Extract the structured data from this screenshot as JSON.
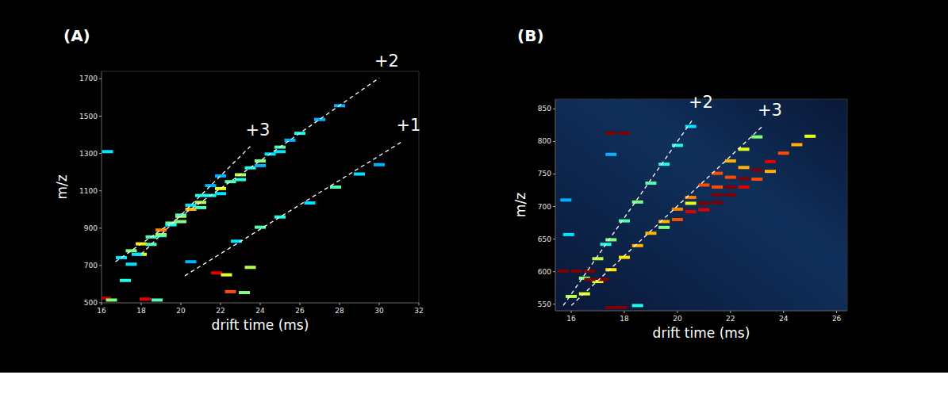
{
  "chart_data": [
    {
      "type": "scatter",
      "label": "(A)",
      "xlabel": "drift time (ms)",
      "ylabel": "m/z",
      "xlim": [
        16,
        32
      ],
      "xticks": [
        16,
        18,
        20,
        22,
        24,
        26,
        28,
        30,
        32
      ],
      "ylim": [
        500,
        1740
      ],
      "yticks": [
        500,
        700,
        900,
        1100,
        1300,
        1500,
        1700
      ],
      "grid": false,
      "marker": "dash",
      "intensity_lim": [
        0,
        1
      ],
      "points": {
        "x": [
          17,
          17.5,
          18,
          18.5,
          19,
          19.5,
          20,
          20.5,
          21,
          21.5,
          22,
          22.5,
          23,
          23.5,
          24,
          24.5,
          25,
          25.5,
          26,
          27,
          28,
          19,
          20,
          21,
          22,
          23,
          24,
          25,
          17.5,
          18,
          18.5,
          19,
          19.5,
          20,
          20.5,
          21,
          21.5,
          22,
          22.8,
          24,
          25,
          26.5,
          27.8,
          29,
          30,
          23.5,
          16.2,
          16.5,
          18.2,
          18.8,
          21.8,
          22.3,
          22.5,
          23.2,
          17.2,
          16.3,
          17.8,
          20.5
        ],
        "values": [
          742,
          779,
          816,
          853,
          890,
          927,
          964,
          1001,
          1038,
          1075,
          1112,
          1149,
          1186,
          1223,
          1260,
          1297,
          1334,
          1371,
          1408,
          1482,
          1556,
          860,
          935,
          1010,
          1085,
          1160,
          1235,
          1310,
          707,
          760,
          813,
          865,
          918,
          970,
          1023,
          1075,
          1128,
          1180,
          830,
          905,
          960,
          1035,
          1120,
          1190,
          1240,
          690,
          525,
          515,
          520,
          515,
          660,
          650,
          560,
          555,
          620,
          1310,
          760,
          720
        ],
        "intensity": [
          0.35,
          0.5,
          0.65,
          0.45,
          0.75,
          0.5,
          0.6,
          0.7,
          0.55,
          0.4,
          0.6,
          0.45,
          0.55,
          0.4,
          0.5,
          0.35,
          0.45,
          0.3,
          0.4,
          0.3,
          0.3,
          0.4,
          0.5,
          0.45,
          0.35,
          0.4,
          0.3,
          0.35,
          0.35,
          0.6,
          0.45,
          0.5,
          0.4,
          0.45,
          0.35,
          0.4,
          0.3,
          0.3,
          0.35,
          0.45,
          0.4,
          0.35,
          0.45,
          0.35,
          0.3,
          0.55,
          0.95,
          0.5,
          0.9,
          0.45,
          0.9,
          0.6,
          0.8,
          0.5,
          0.4,
          0.35,
          0.35,
          0.3
        ]
      },
      "series": [
        {
          "name": "+3",
          "type": "line",
          "line_style": "dashed",
          "color": "#ffffff",
          "x": [
            18,
            23.5
          ],
          "values": [
            760,
            1338
          ]
        },
        {
          "name": "+2",
          "type": "line",
          "line_style": "dashed",
          "color": "#ffffff",
          "x": [
            16.7,
            30
          ],
          "values": [
            720,
            1705
          ]
        },
        {
          "name": "+1",
          "type": "line",
          "line_style": "dashed",
          "color": "#ffffff",
          "x": [
            20.2,
            31.1
          ],
          "values": [
            645,
            1360
          ]
        }
      ]
    },
    {
      "type": "scatter",
      "label": "(B)",
      "xlabel": "drift time (ms)",
      "ylabel": "m/z",
      "xlim": [
        15.4,
        26.4
      ],
      "xticks": [
        16,
        18,
        20,
        22,
        24,
        26
      ],
      "ylim": [
        540,
        865
      ],
      "yticks": [
        550,
        600,
        650,
        700,
        750,
        800,
        850
      ],
      "grid": false,
      "marker": "dash",
      "intensity_lim": [
        0,
        1
      ],
      "points": {
        "x": [
          16,
          16.5,
          17,
          17.5,
          18,
          18.5,
          19,
          19.5,
          20,
          20.5,
          16.5,
          17,
          17.5,
          18,
          18.5,
          19,
          19.5,
          20,
          20.5,
          21,
          21.5,
          22,
          22.5,
          23,
          20,
          20.5,
          21,
          21.5,
          22,
          22.5,
          23,
          23.5,
          24,
          24.5,
          25,
          21,
          21.5,
          22,
          22.5,
          23,
          23.5,
          22,
          22.5,
          21.5,
          20.5,
          19.5,
          15.7,
          16.2,
          16.7,
          16.7,
          17.2,
          17.5,
          17.9,
          17.5,
          18,
          15.9,
          17.5,
          15.8,
          17.3,
          18.5
        ],
        "values": [
          562,
          590,
          620,
          649,
          678,
          707,
          736,
          765,
          794,
          823,
          566,
          585,
          603,
          622,
          640,
          659,
          677,
          696,
          714,
          733,
          751,
          770,
          788,
          807,
          680,
          692,
          705,
          718,
          730,
          743,
          756,
          769,
          782,
          795,
          808,
          695,
          706,
          718,
          730,
          742,
          754,
          745,
          760,
          730,
          705,
          668,
          601,
          601,
          601,
          588,
          588,
          545,
          545,
          813,
          813,
          657,
          780,
          710,
          642,
          548
        ],
        "intensity": [
          0.55,
          0.5,
          0.55,
          0.5,
          0.45,
          0.5,
          0.45,
          0.4,
          0.4,
          0.35,
          0.6,
          0.6,
          0.65,
          0.65,
          0.7,
          0.7,
          0.7,
          0.75,
          0.75,
          0.8,
          0.8,
          0.7,
          0.6,
          0.5,
          0.8,
          0.9,
          1,
          1,
          1,
          1,
          1,
          0.9,
          0.8,
          0.7,
          0.6,
          0.9,
          1,
          1,
          0.9,
          0.8,
          0.7,
          0.8,
          0.7,
          0.8,
          0.6,
          0.5,
          1,
          1,
          1,
          1,
          1,
          1,
          1,
          1,
          1,
          0.35,
          0.3,
          0.3,
          0.4,
          0.4
        ]
      },
      "series": [
        {
          "name": "+2",
          "type": "line",
          "line_style": "dashed",
          "color": "#ffffff",
          "x": [
            15.7,
            20.6
          ],
          "values": [
            548,
            835
          ]
        },
        {
          "name": "+3",
          "type": "line",
          "line_style": "dashed",
          "color": "#ffffff",
          "x": [
            16,
            23.2
          ],
          "values": [
            548,
            823
          ]
        }
      ]
    }
  ]
}
